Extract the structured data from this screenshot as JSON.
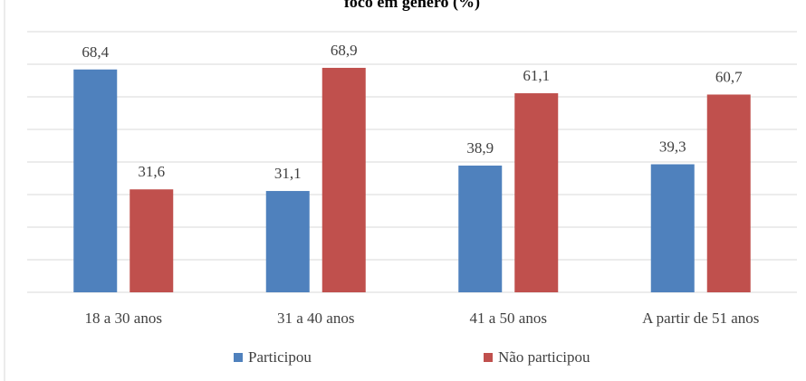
{
  "chart_data": {
    "type": "bar",
    "title": "foco em gênero (%)",
    "categories": [
      "18 a 30 anos",
      "31 a 40 anos",
      "41 a 50 anos",
      "A partir de 51 anos"
    ],
    "series": [
      {
        "name": "Participou",
        "values": [
          68.4,
          31.1,
          38.9,
          39.3
        ],
        "labels": [
          "68,4",
          "31,1",
          "38,9",
          "39,3"
        ],
        "color": "#4f81bd"
      },
      {
        "name": "Não participou",
        "values": [
          31.6,
          68.9,
          61.1,
          60.7
        ],
        "labels": [
          "31,6",
          "68,9",
          "61,1",
          "60,7"
        ],
        "color": "#c0504d"
      }
    ],
    "ylim": [
      0,
      80
    ],
    "grid": true,
    "legend": "bottom"
  }
}
